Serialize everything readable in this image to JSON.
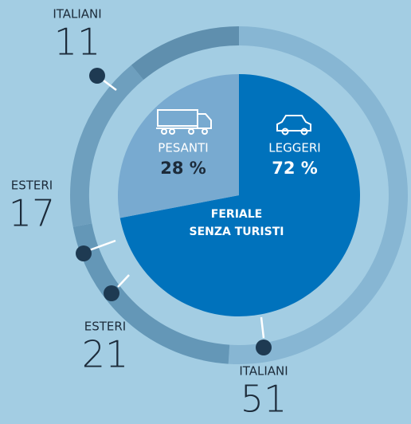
{
  "chart_data": [
    {
      "type": "pie",
      "categories": [
        "LEGGERI",
        "PESANTI"
      ],
      "values": [
        72,
        28
      ],
      "value_labels": [
        "72 %",
        "28 %"
      ],
      "colors": [
        "#0072bc",
        "#78aad0"
      ],
      "label_colors": [
        "#ffffff",
        "#1c2b3a"
      ],
      "center_label": [
        "FERIALE",
        "SENZA TURISTI"
      ]
    },
    {
      "type": "donut",
      "categories": [
        "ITALIANI",
        "ESTERI",
        "ESTERI",
        "ITALIANI"
      ],
      "values": [
        51,
        21,
        17,
        11
      ],
      "colors": [
        "#87b6d3",
        "#6497b7",
        "#6e9fbe",
        "#5f8fae"
      ]
    }
  ]
}
